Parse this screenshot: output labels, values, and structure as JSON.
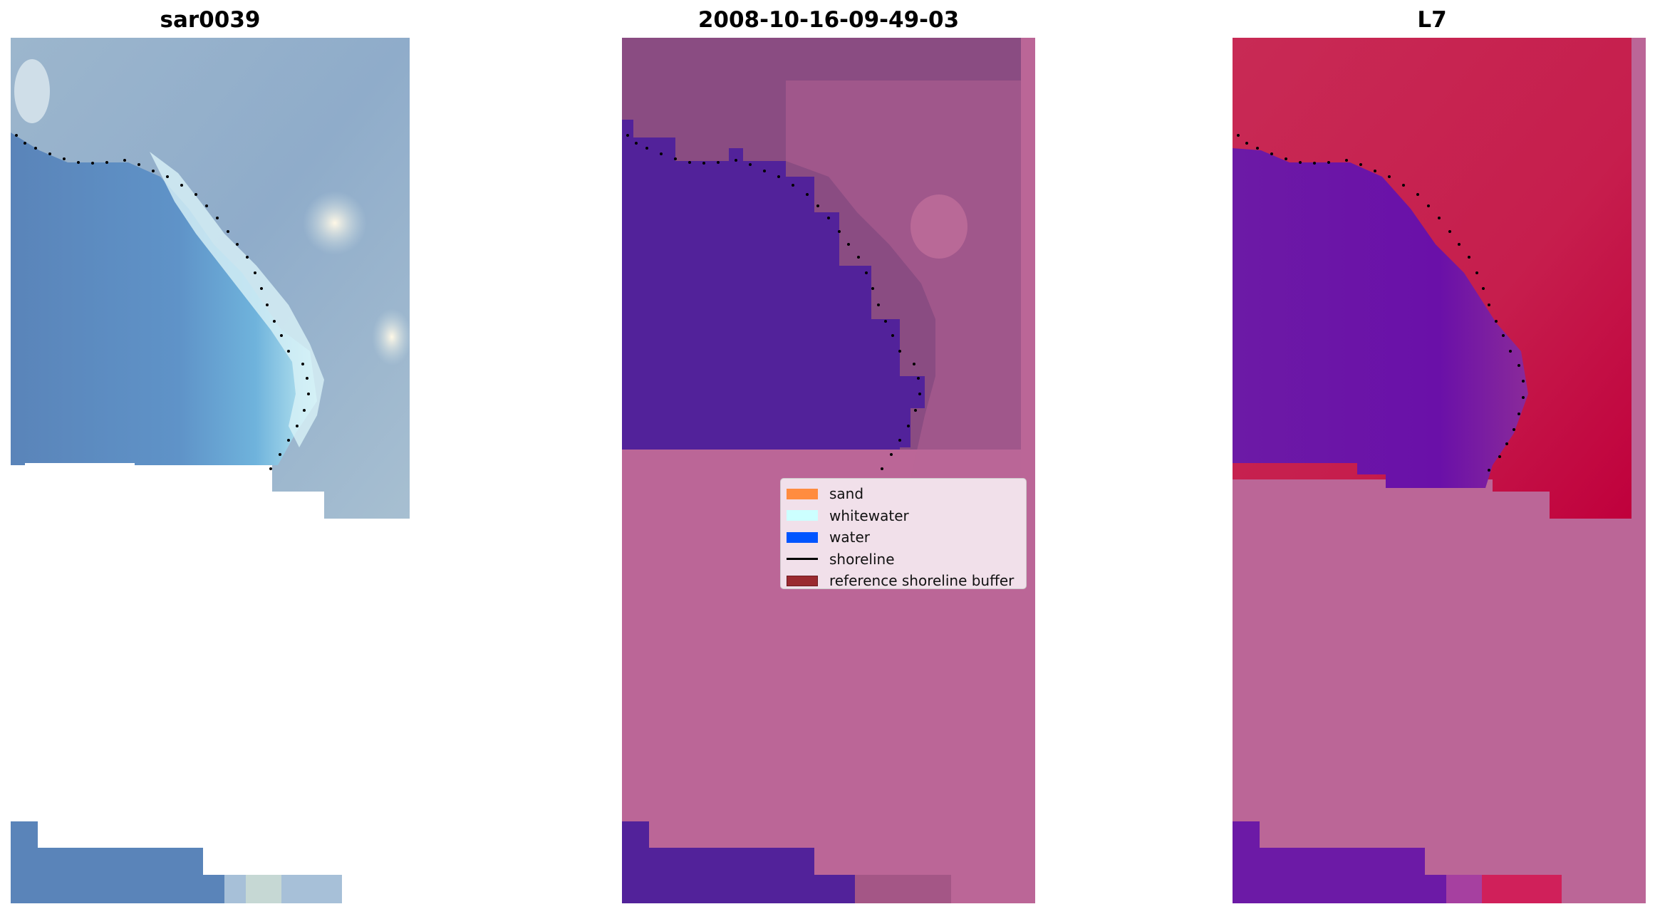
{
  "figure": {
    "panels": [
      {
        "title": "sar0039",
        "kind": "rgb"
      },
      {
        "title": "2008-10-16-09-49-03",
        "kind": "classified"
      },
      {
        "title": "L7",
        "kind": "mndwi"
      }
    ]
  },
  "legend": {
    "items": [
      {
        "label": "sand",
        "type": "patch",
        "color": "#ff8c3f"
      },
      {
        "label": "whitewater",
        "type": "patch",
        "color": "#ccffff"
      },
      {
        "label": "water",
        "type": "patch",
        "color": "#0055ff"
      },
      {
        "label": "shoreline",
        "type": "line",
        "color": "#000000"
      },
      {
        "label": "reference shoreline buffer",
        "type": "patch",
        "color": "#9a2a30"
      }
    ]
  },
  "colors": {
    "rgb_water": "#5b86bb",
    "rgb_land": "#8faecb",
    "rgb_whitewater": "#e6f7fb",
    "class_water": "#52229a",
    "class_buffer": "#bb6697",
    "class_land": "#8a4c82",
    "mndwi_water": "#6a16a4",
    "mndwi_land": "#c81e4e",
    "mndwi_buffer": "#bb6697",
    "shoreline": "#000000"
  }
}
